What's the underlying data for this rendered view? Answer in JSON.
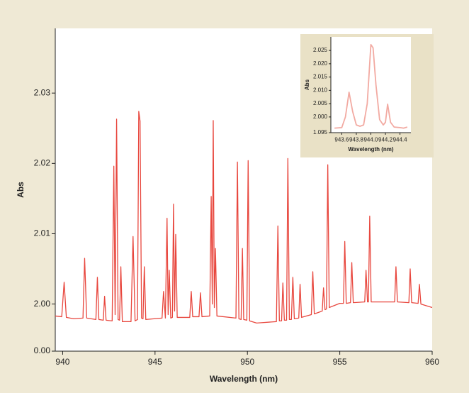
{
  "chart_data": [
    {
      "type": "line",
      "xlabel": "Wavelength (nm)",
      "ylabel": "Abs",
      "color": "#e8473e",
      "xlim": [
        939.6,
        960
      ],
      "xticks": [
        940,
        945,
        950,
        955,
        960
      ],
      "ylim": [
        1.9933,
        2.0392
      ],
      "yticks": [
        {
          "value": 0,
          "label": "0.00"
        },
        {
          "value": 2,
          "label": "2.00"
        },
        2.01,
        2.02,
        2.03
      ],
      "x": [
        939.6,
        939.95,
        940.08,
        940.2,
        940.6,
        941.1,
        941.19,
        941.3,
        941.8,
        941.88,
        941.96,
        942.2,
        942.27,
        942.35,
        942.68,
        942.77,
        942.84,
        942.92,
        943.0,
        943.08,
        943.15,
        943.23,
        943.7,
        943.81,
        943.92,
        944.05,
        944.12,
        944.19,
        944.27,
        944.35,
        944.42,
        944.5,
        945.38,
        945.46,
        945.56,
        945.65,
        945.71,
        945.77,
        945.85,
        945.94,
        946.0,
        946.06,
        946.12,
        946.2,
        946.88,
        946.96,
        947.04,
        947.38,
        947.46,
        947.54,
        947.96,
        948.04,
        948.1,
        948.15,
        948.21,
        948.27,
        948.35,
        949.38,
        949.46,
        949.54,
        949.66,
        949.73,
        949.8,
        949.97,
        950.04,
        950.12,
        950.5,
        951.57,
        951.65,
        951.73,
        951.85,
        951.92,
        952.0,
        952.12,
        952.19,
        952.27,
        952.38,
        952.46,
        952.54,
        952.78,
        952.85,
        952.93,
        953.46,
        953.54,
        953.62,
        954.05,
        954.12,
        954.2,
        954.28,
        954.35,
        954.43,
        955.0,
        955.2,
        955.27,
        955.35,
        955.58,
        955.65,
        955.73,
        956.35,
        956.42,
        956.5,
        956.55,
        956.62,
        956.7,
        957.97,
        958.04,
        958.12,
        958.74,
        958.81,
        958.89,
        959.24,
        959.31,
        959.39,
        960.0
      ],
      "values": [
        1.9983,
        1.9982,
        2.0031,
        1.9981,
        1.9979,
        1.998,
        2.0065,
        1.998,
        1.9978,
        2.0038,
        1.9978,
        1.9977,
        2.0011,
        1.9977,
        1.9976,
        2.0196,
        1.9985,
        2.0263,
        1.9978,
        1.9977,
        2.0053,
        1.9975,
        1.9975,
        2.0096,
        1.9976,
        1.9978,
        2.0274,
        2.026,
        1.998,
        1.9979,
        2.0053,
        1.9978,
        1.998,
        2.0018,
        1.998,
        2.0122,
        1.9985,
        2.0048,
        1.998,
        1.9981,
        2.0142,
        1.999,
        2.0099,
        1.9981,
        1.9981,
        2.0018,
        1.9982,
        1.9982,
        2.0016,
        1.9982,
        1.9983,
        2.0153,
        2.0,
        2.0261,
        1.9995,
        2.0079,
        1.9983,
        1.998,
        2.0202,
        1.9979,
        1.9978,
        2.0079,
        1.9978,
        1.9977,
        2.0204,
        1.9976,
        1.9973,
        1.9975,
        2.0111,
        1.9976,
        1.9976,
        2.003,
        1.9977,
        1.9977,
        2.0207,
        1.9978,
        1.9978,
        2.0038,
        1.9979,
        1.998,
        2.0028,
        1.9981,
        1.9985,
        2.0046,
        1.9986,
        1.999,
        2.0023,
        1.9992,
        1.9993,
        2.0198,
        1.9995,
        2.0001,
        2.0001,
        2.0089,
        2.0001,
        2.0002,
        2.0059,
        2.0002,
        2.0003,
        2.0048,
        2.0003,
        2.0003,
        2.0125,
        2.0003,
        2.0003,
        2.0053,
        2.0003,
        2.0002,
        2.005,
        2.0002,
        2.0001,
        2.0028,
        2.0,
        1.9995
      ]
    },
    {
      "type": "line",
      "xlabel": "Wavelength (nm)",
      "ylabel": "Abs",
      "color": "#f2aaa2",
      "xlim": [
        943.45,
        944.55
      ],
      "xticks": [
        943.6,
        943.8,
        {
          "value": 944,
          "label": "944.0"
        },
        944.2,
        944.4
      ],
      "ylim": [
        1.9941,
        2.0301
      ],
      "yticks": [
        {
          "value": 1.095,
          "label": "1.095"
        },
        {
          "value": 2,
          "label": "2.000"
        },
        2.005,
        {
          "value": 2.01,
          "label": "2.010"
        },
        2.015,
        {
          "value": 2.02,
          "label": "2.020"
        },
        2.025
      ],
      "x": [
        943.5,
        943.6,
        943.65,
        943.7,
        943.75,
        943.8,
        943.85,
        943.9,
        943.95,
        944.0,
        944.03,
        944.07,
        944.12,
        944.17,
        944.2,
        944.23,
        944.27,
        944.32,
        944.4,
        944.45,
        944.5
      ],
      "values": [
        1.9958,
        1.996,
        2.0,
        2.0093,
        2.002,
        1.997,
        1.9965,
        1.997,
        2.005,
        2.0272,
        2.026,
        2.012,
        1.999,
        1.997,
        1.998,
        2.0048,
        1.998,
        1.9962,
        1.996,
        1.9958,
        1.9962
      ]
    }
  ]
}
